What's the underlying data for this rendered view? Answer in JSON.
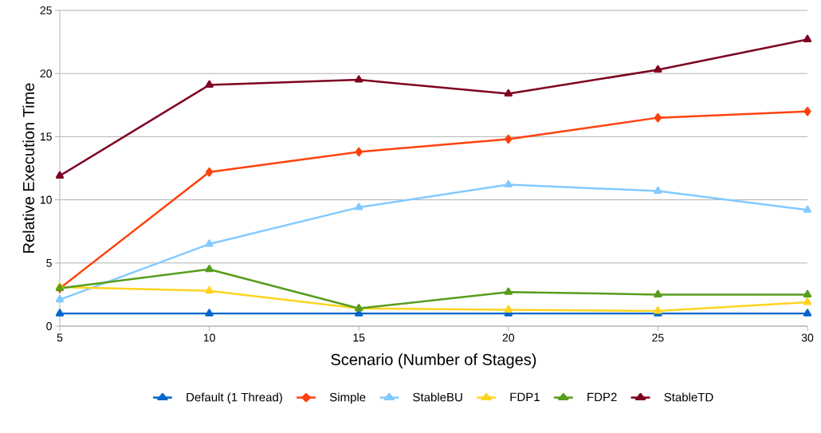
{
  "chart_data": {
    "type": "line",
    "xlabel": "Scenario (Number of Stages)",
    "ylabel": "Relative Execution Time",
    "x": [
      5,
      10,
      15,
      20,
      25,
      30
    ],
    "xlim": [
      5,
      30
    ],
    "xticks": [
      5,
      10,
      15,
      20,
      25,
      30
    ],
    "ylim": [
      0,
      25
    ],
    "yticks": [
      0,
      5,
      10,
      15,
      20,
      25
    ],
    "grid": "y",
    "legend": "bottom",
    "series": [
      {
        "name": "Default (1 Thread)",
        "color": "#0066cc",
        "marker": "triangle",
        "values": [
          1,
          1,
          1,
          1,
          1,
          1
        ]
      },
      {
        "name": "Simple",
        "color": "#ff420e",
        "marker": "diamond",
        "values": [
          3.0,
          12.2,
          13.8,
          14.8,
          16.5,
          17.0
        ]
      },
      {
        "name": "StableBU",
        "color": "#83caff",
        "marker": "triangle",
        "values": [
          2.1,
          6.5,
          9.4,
          11.2,
          10.7,
          9.2
        ]
      },
      {
        "name": "FDP1",
        "color": "#ffd320",
        "marker": "triangle",
        "values": [
          3.1,
          2.8,
          1.4,
          1.3,
          1.2,
          1.9
        ]
      },
      {
        "name": "FDP2",
        "color": "#579d1c",
        "marker": "triangle",
        "values": [
          3.0,
          4.5,
          1.4,
          2.7,
          2.5,
          2.5
        ]
      },
      {
        "name": "StableTD",
        "color": "#7e0021",
        "marker": "triangle",
        "values": [
          11.9,
          19.1,
          19.5,
          18.4,
          20.3,
          22.7
        ]
      }
    ]
  }
}
